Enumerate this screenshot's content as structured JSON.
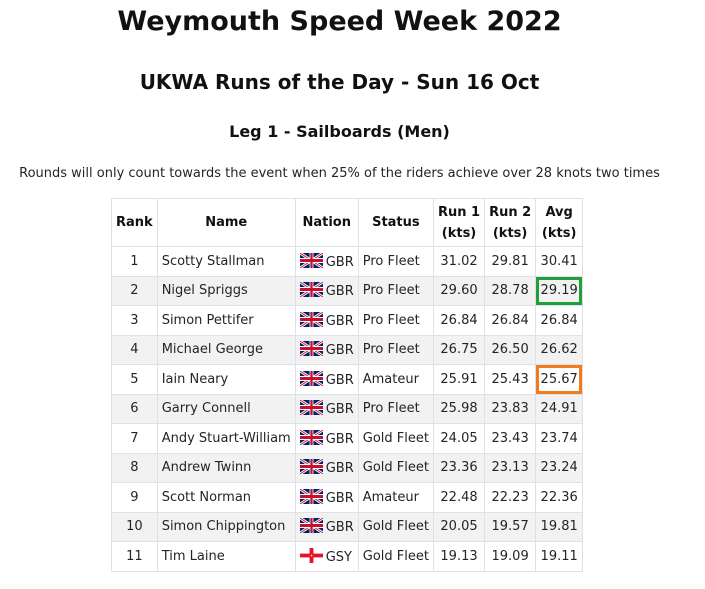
{
  "page": {
    "title": "Weymouth Speed Week 2022",
    "subtitle": "UKWA Runs of the Day - Sun 16 Oct",
    "section": "Leg 1 - Sailboards (Men)",
    "note": "Rounds will only count towards the event when 25% of the riders achieve over 28 knots two times"
  },
  "table": {
    "headers": {
      "rank": "Rank",
      "name": "Name",
      "nation": "Nation",
      "status": "Status",
      "run1": [
        "Run 1",
        "(kts)"
      ],
      "run2": [
        "Run 2",
        "(kts)"
      ],
      "avg": [
        "Avg",
        "(kts)"
      ]
    },
    "rows": [
      {
        "rank": "1",
        "name": "Scotty Stallman",
        "flag": "uk-flag",
        "nation": "GBR",
        "status": "Pro Fleet",
        "run1": "31.02",
        "run2": "29.81",
        "avg": "30.41",
        "highlight": ""
      },
      {
        "rank": "2",
        "name": "Nigel Spriggs",
        "flag": "uk-flag",
        "nation": "GBR",
        "status": "Pro Fleet",
        "run1": "29.60",
        "run2": "28.78",
        "avg": "29.19",
        "highlight": "#1fa13a"
      },
      {
        "rank": "3",
        "name": "Simon Pettifer",
        "flag": "uk-flag",
        "nation": "GBR",
        "status": "Pro Fleet",
        "run1": "26.84",
        "run2": "26.84",
        "avg": "26.84",
        "highlight": ""
      },
      {
        "rank": "4",
        "name": "Michael George",
        "flag": "uk-flag",
        "nation": "GBR",
        "status": "Pro Fleet",
        "run1": "26.75",
        "run2": "26.50",
        "avg": "26.62",
        "highlight": ""
      },
      {
        "rank": "5",
        "name": "Iain Neary",
        "flag": "uk-flag",
        "nation": "GBR",
        "status": "Amateur",
        "run1": "25.91",
        "run2": "25.43",
        "avg": "25.67",
        "highlight": "#f07c1e"
      },
      {
        "rank": "6",
        "name": "Garry Connell",
        "flag": "uk-flag",
        "nation": "GBR",
        "status": "Pro Fleet",
        "run1": "25.98",
        "run2": "23.83",
        "avg": "24.91",
        "highlight": ""
      },
      {
        "rank": "7",
        "name": "Andy Stuart-William",
        "flag": "uk-flag",
        "nation": "GBR",
        "status": "Gold Fleet",
        "run1": "24.05",
        "run2": "23.43",
        "avg": "23.74",
        "highlight": ""
      },
      {
        "rank": "8",
        "name": "Andrew Twinn",
        "flag": "uk-flag",
        "nation": "GBR",
        "status": "Gold Fleet",
        "run1": "23.36",
        "run2": "23.13",
        "avg": "23.24",
        "highlight": ""
      },
      {
        "rank": "9",
        "name": "Scott Norman",
        "flag": "uk-flag",
        "nation": "GBR",
        "status": "Amateur",
        "run1": "22.48",
        "run2": "22.23",
        "avg": "22.36",
        "highlight": ""
      },
      {
        "rank": "10",
        "name": "Simon Chippington",
        "flag": "uk-flag",
        "nation": "GBR",
        "status": "Gold Fleet",
        "run1": "20.05",
        "run2": "19.57",
        "avg": "19.81",
        "highlight": ""
      },
      {
        "rank": "11",
        "name": "Tim Laine",
        "flag": "guernsey-flag",
        "nation": "GSY",
        "status": "Gold Fleet",
        "run1": "19.13",
        "run2": "19.09",
        "avg": "19.11",
        "highlight": ""
      }
    ]
  }
}
